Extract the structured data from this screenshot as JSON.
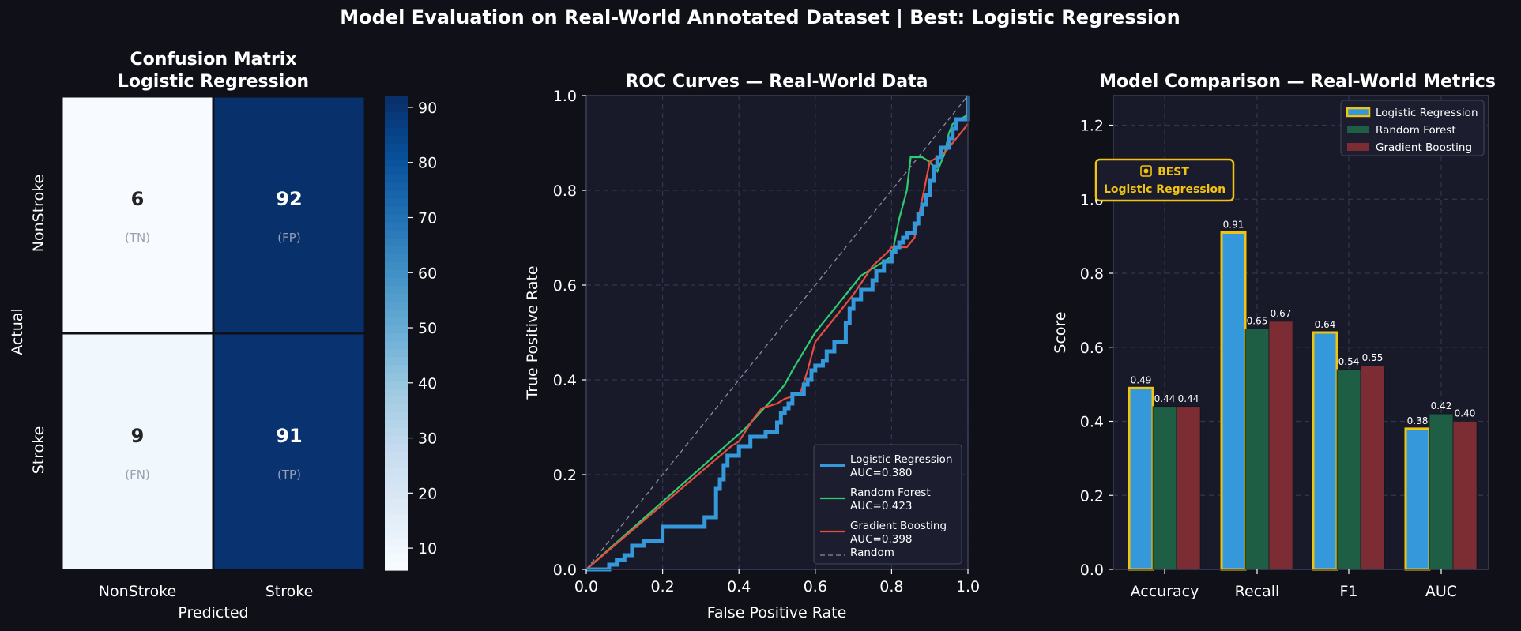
{
  "suptitle": "Model Evaluation on Real-World Annotated Dataset  |  Best: Logistic Regression",
  "colors": {
    "background": "#0f1018",
    "axes_face": "#181a2a",
    "spine": "#3c3f55",
    "grid": "#33364f",
    "logistic_regression": "#3498db",
    "random_forest": "#2ecc71",
    "random_forest_bar": "#1e5e44",
    "gradient_boosting": "#e74c3c",
    "gradient_boosting_bar": "#7b2d33",
    "highlight": "#f1c40f",
    "random_line": "#8a8ca0"
  },
  "chart_data": [
    {
      "type": "heatmap",
      "title_lines": [
        "Confusion Matrix",
        "Logistic Regression"
      ],
      "xlabel": "Predicted",
      "ylabel": "Actual",
      "x_ticklabels": [
        "NonStroke",
        "Stroke"
      ],
      "y_ticklabels": [
        "NonStroke",
        "Stroke"
      ],
      "values": [
        [
          6,
          92
        ],
        [
          9,
          91
        ]
      ],
      "cell_tags": [
        [
          "(TN)",
          "(FP)"
        ],
        [
          "(FN)",
          "(TP)"
        ]
      ],
      "colormap": "Blues",
      "colorbar_range": [
        6,
        92
      ],
      "colorbar_ticks": [
        10,
        20,
        30,
        40,
        50,
        60,
        70,
        80,
        90
      ]
    },
    {
      "type": "line",
      "title": "ROC Curves — Real-World Data",
      "xlabel": "False Positive Rate",
      "ylabel": "True Positive Rate",
      "xlim": [
        0.0,
        1.0
      ],
      "ylim": [
        0.0,
        1.0
      ],
      "x_ticks": [
        "0.0",
        "0.2",
        "0.4",
        "0.6",
        "0.8",
        "1.0"
      ],
      "y_ticks": [
        "0.0",
        "0.2",
        "0.4",
        "0.6",
        "0.8",
        "1.0"
      ],
      "grid": true,
      "legend_position": "lower-right",
      "series": [
        {
          "name": "Logistic Regression",
          "legend_line2": "AUC=0.380",
          "step": true,
          "x": [
            0.0,
            0.04,
            0.06,
            0.08,
            0.1,
            0.12,
            0.15,
            0.2,
            0.26,
            0.31,
            0.34,
            0.35,
            0.36,
            0.37,
            0.4,
            0.43,
            0.47,
            0.5,
            0.51,
            0.52,
            0.53,
            0.54,
            0.57,
            0.58,
            0.59,
            0.6,
            0.62,
            0.63,
            0.65,
            0.68,
            0.69,
            0.7,
            0.72,
            0.75,
            0.76,
            0.78,
            0.8,
            0.81,
            0.82,
            0.83,
            0.84,
            0.86,
            0.87,
            0.88,
            0.89,
            0.9,
            0.91,
            0.92,
            0.93,
            0.95,
            0.96,
            0.97,
            1.0
          ],
          "y": [
            0.0,
            0.0,
            0.01,
            0.02,
            0.03,
            0.05,
            0.06,
            0.09,
            0.09,
            0.11,
            0.17,
            0.19,
            0.22,
            0.24,
            0.26,
            0.28,
            0.29,
            0.31,
            0.33,
            0.34,
            0.35,
            0.37,
            0.39,
            0.4,
            0.42,
            0.43,
            0.44,
            0.46,
            0.48,
            0.52,
            0.55,
            0.57,
            0.59,
            0.61,
            0.63,
            0.65,
            0.67,
            0.68,
            0.69,
            0.7,
            0.71,
            0.73,
            0.75,
            0.77,
            0.79,
            0.82,
            0.85,
            0.87,
            0.89,
            0.91,
            0.93,
            0.95,
            1.0
          ]
        },
        {
          "name": "Random Forest",
          "legend_line2": "AUC=0.423",
          "step": false,
          "x": [
            0.0,
            0.42,
            0.5,
            0.52,
            0.54,
            0.6,
            0.7,
            0.72,
            0.8,
            0.81,
            0.82,
            0.84,
            0.85,
            0.88,
            0.9,
            0.92,
            0.93,
            0.94,
            0.95,
            0.96,
            1.0
          ],
          "y": [
            0.0,
            0.3,
            0.37,
            0.39,
            0.42,
            0.5,
            0.6,
            0.62,
            0.66,
            0.7,
            0.74,
            0.8,
            0.87,
            0.87,
            0.86,
            0.84,
            0.86,
            0.88,
            0.92,
            0.94,
            0.96
          ]
        },
        {
          "name": "Gradient Boosting",
          "legend_line2": "AUC=0.398",
          "step": false,
          "x": [
            0.0,
            0.38,
            0.4,
            0.44,
            0.46,
            0.5,
            0.52,
            0.56,
            0.58,
            0.6,
            0.65,
            0.7,
            0.75,
            0.79,
            0.8,
            0.84,
            0.86,
            0.88,
            0.89,
            0.9,
            0.92,
            0.94,
            0.96,
            0.98,
            1.0
          ],
          "y": [
            0.0,
            0.26,
            0.27,
            0.32,
            0.34,
            0.35,
            0.36,
            0.37,
            0.42,
            0.48,
            0.53,
            0.58,
            0.64,
            0.67,
            0.68,
            0.68,
            0.7,
            0.78,
            0.82,
            0.86,
            0.87,
            0.88,
            0.9,
            0.92,
            0.94
          ]
        },
        {
          "name": "Random",
          "legend_line2": "",
          "step": false,
          "dashed": true,
          "x": [
            0.0,
            1.0
          ],
          "y": [
            0.0,
            1.0
          ]
        }
      ]
    },
    {
      "type": "bar",
      "title": "Model Comparison — Real-World Metrics",
      "ylabel": "Score",
      "xlabel": "",
      "ylim": [
        0.0,
        1.28
      ],
      "y_ticks": [
        "0.0",
        "0.2",
        "0.4",
        "0.6",
        "0.8",
        "1.0",
        "1.2"
      ],
      "grid": true,
      "legend_position": "top-right",
      "categories": [
        "Accuracy",
        "Recall",
        "F1",
        "AUC"
      ],
      "series": [
        {
          "name": "Logistic Regression",
          "values": [
            0.49,
            0.91,
            0.64,
            0.38
          ],
          "labels": [
            "0.49",
            "0.91",
            "0.64",
            "0.38"
          ]
        },
        {
          "name": "Random Forest",
          "values": [
            0.44,
            0.65,
            0.54,
            0.42
          ],
          "labels": [
            "0.44",
            "0.65",
            "0.54",
            "0.42"
          ]
        },
        {
          "name": "Gradient Boosting",
          "values": [
            0.44,
            0.67,
            0.55,
            0.4
          ],
          "labels": [
            "0.44",
            "0.67",
            "0.55",
            "0.40"
          ]
        }
      ],
      "annotation": {
        "icon": "medal-icon",
        "line1": "BEST",
        "line2": "Logistic Regression"
      }
    }
  ]
}
